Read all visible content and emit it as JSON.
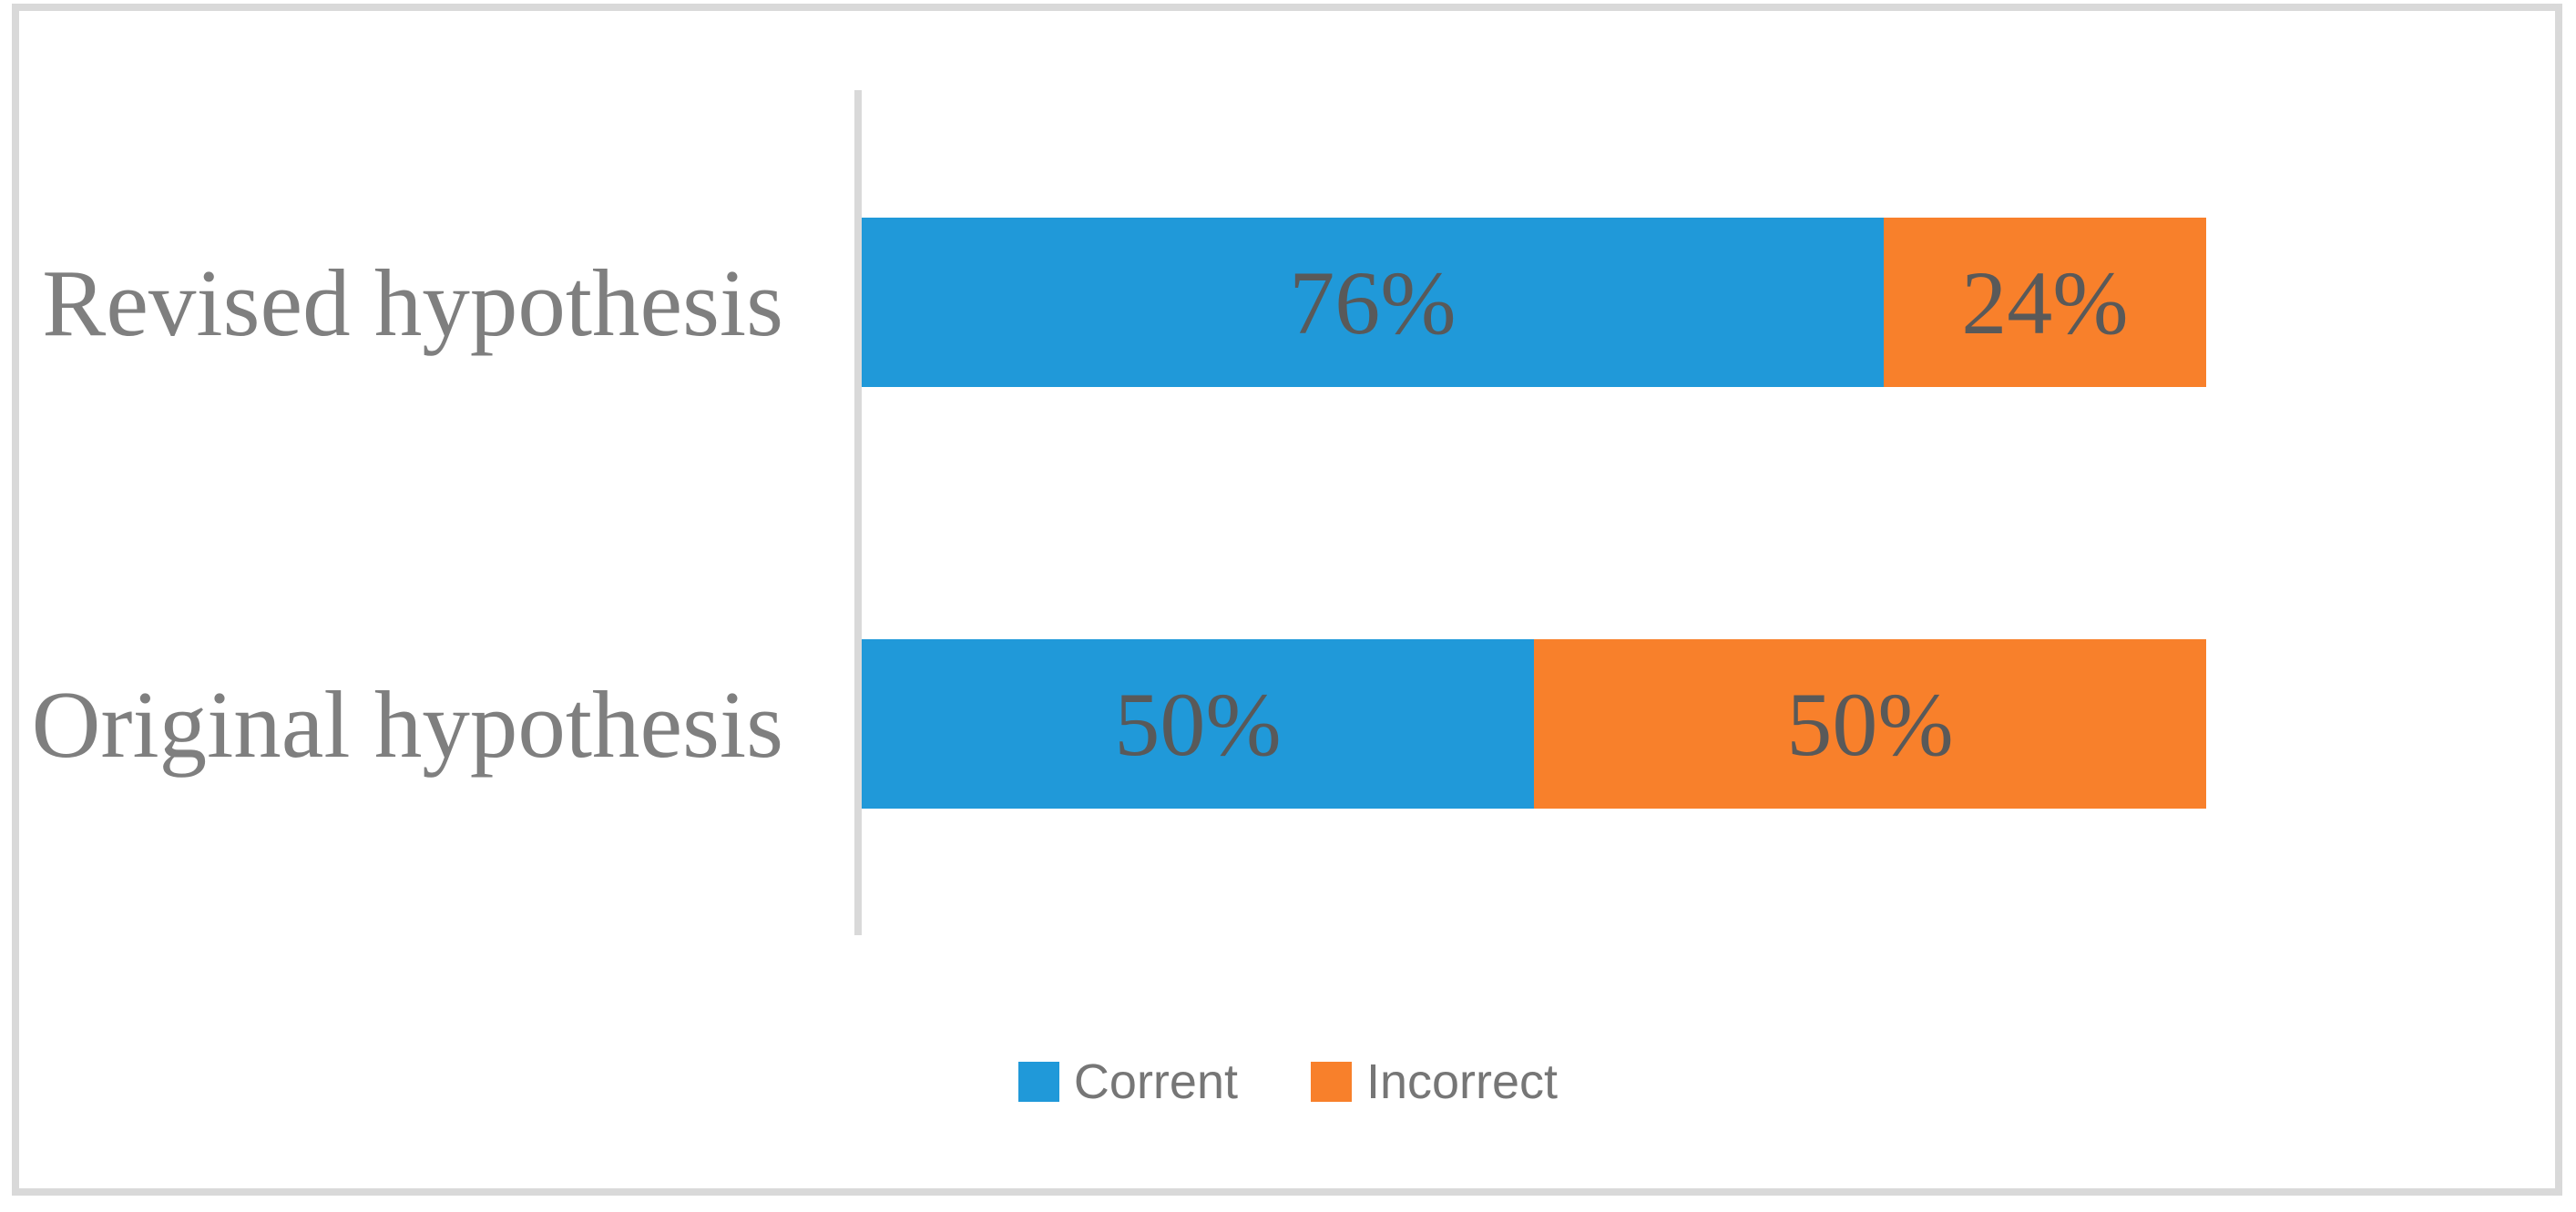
{
  "chart_data": {
    "type": "bar",
    "orientation": "horizontal",
    "stacked": true,
    "grid": false,
    "legend_position": "bottom",
    "xlim": [
      0,
      100
    ],
    "categories": [
      "Revised hypothesis",
      "Original hypothesis"
    ],
    "series": [
      {
        "name": "Corrent",
        "color": "#2099d9",
        "values": [
          76,
          50
        ]
      },
      {
        "name": "Incorrect",
        "color": "#f8802b",
        "values": [
          24,
          50
        ]
      }
    ],
    "data_labels": [
      [
        "76%",
        "24%"
      ],
      [
        "50%",
        "50%"
      ]
    ]
  },
  "legend": {
    "items": [
      {
        "label": "Corrent",
        "color": "#2099d9"
      },
      {
        "label": "Incorrect",
        "color": "#f8802b"
      }
    ]
  },
  "colors": {
    "frame": "#d9d9d9",
    "axis_line": "#d9d9d9",
    "category_text": "#7f7f7f",
    "data_label_text": "#595959",
    "legend_text": "#767676"
  }
}
